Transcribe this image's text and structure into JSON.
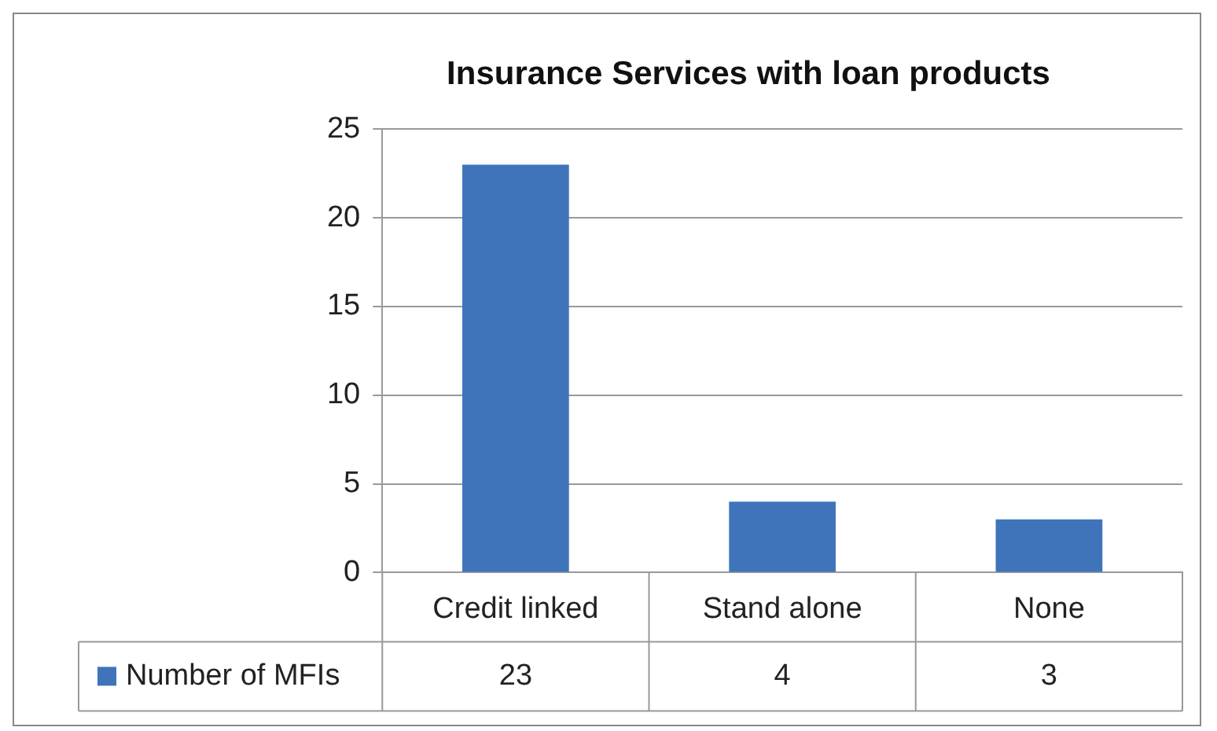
{
  "chart_data": {
    "type": "bar",
    "title": "Insurance Services with loan products",
    "categories": [
      "Credit linked",
      "Stand alone",
      "None"
    ],
    "series": [
      {
        "name": "Number of MFIs",
        "color": "#3f74bb",
        "values": [
          23,
          4,
          3
        ]
      }
    ],
    "ylim": [
      0,
      25
    ],
    "yticks": [
      0,
      5,
      10,
      15,
      20,
      25
    ],
    "grid": "y",
    "legend": "bottom",
    "data_labels": true
  }
}
